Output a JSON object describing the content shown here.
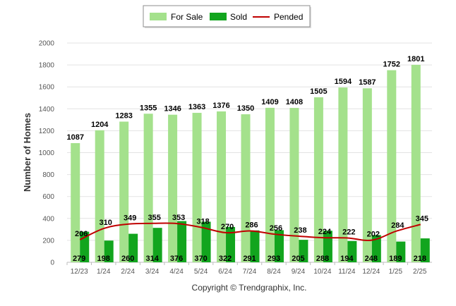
{
  "chart_data": {
    "type": "bar",
    "ylabel": "Number of Homes",
    "ylim": [
      0,
      2000
    ],
    "yticks": [
      0,
      200,
      400,
      600,
      800,
      1000,
      1200,
      1400,
      1600,
      1800,
      2000
    ],
    "grid": true,
    "legend_position": "top-center",
    "categories": [
      "12/23",
      "1/24",
      "2/24",
      "3/24",
      "4/24",
      "5/24",
      "6/24",
      "7/24",
      "8/24",
      "9/24",
      "10/24",
      "11/24",
      "12/24",
      "1/25",
      "2/25"
    ],
    "series": [
      {
        "name": "For Sale",
        "type": "bar",
        "color": "#a4e18c",
        "values": [
          1087,
          1204,
          1283,
          1355,
          1346,
          1363,
          1376,
          1350,
          1409,
          1408,
          1505,
          1594,
          1587,
          1752,
          1801
        ]
      },
      {
        "name": "Sold",
        "type": "bar",
        "color": "#12a51e",
        "values": [
          279,
          198,
          260,
          314,
          376,
          370,
          322,
          291,
          293,
          205,
          288,
          194,
          248,
          189,
          218
        ]
      },
      {
        "name": "Pended",
        "type": "line",
        "color": "#c00000",
        "values": [
          206,
          310,
          349,
          355,
          353,
          318,
          270,
          286,
          256,
          238,
          224,
          222,
          202,
          284,
          345
        ]
      }
    ]
  },
  "footer": {
    "copyright": "Copyright © Trendgraphix, Inc."
  }
}
